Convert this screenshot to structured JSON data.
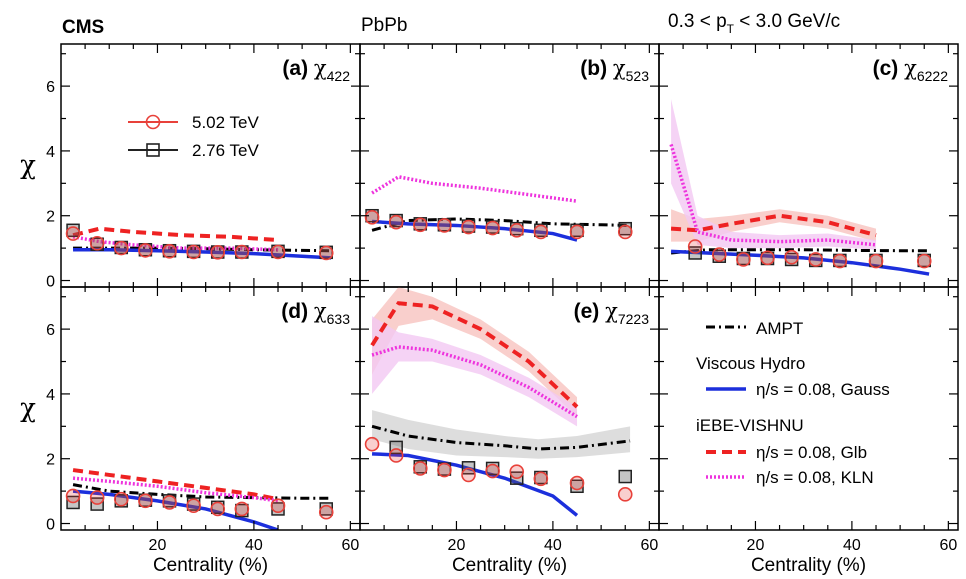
{
  "header": {
    "cms": "CMS",
    "system": "PbPb",
    "pt_prefix": "0.3 < p",
    "pt_sub": "T",
    "pt_suffix": " < 3.0 GeV/c"
  },
  "chart_data": {
    "type": "line",
    "xlabel": "Centrality (%)",
    "ylabel": "χ",
    "xlim": [
      0,
      62
    ],
    "ylim": [
      -0.2,
      7.3
    ],
    "xticks": [
      20,
      40,
      60
    ],
    "yticks": [
      0,
      2,
      4,
      6
    ],
    "colors": {
      "data_502": "#e8413a",
      "data_276": "#222222",
      "ampt": "#000000",
      "gauss": "#1c2fdc",
      "glb": "#ee2222",
      "kln": "#ee33dd",
      "band_glb": "#f7c3bf",
      "band_kln": "#f3c8f3",
      "band_ampt": "#d2d2d2"
    },
    "legend_data": {
      "s502": "5.02 TeV",
      "s276": "2.76 TeV"
    },
    "legend_models": {
      "ampt": "AMPT",
      "hydro_title": "Viscous Hydro",
      "gauss": "η/s = 0.08, Gauss",
      "vishnu_title": "iEBE-VISHNU",
      "glb": "η/s = 0.08, Glb",
      "kln": "η/s = 0.08, KLN"
    },
    "panels": [
      {
        "tag": "(a)",
        "sym": "χ",
        "sub": "422",
        "data_502": [
          [
            2.5,
            1.45
          ],
          [
            7.5,
            1.15
          ],
          [
            12.5,
            1.0
          ],
          [
            17.5,
            0.93
          ],
          [
            22.5,
            0.9
          ],
          [
            27.5,
            0.88
          ],
          [
            32.5,
            0.87
          ],
          [
            37.5,
            0.88
          ],
          [
            45,
            0.88
          ],
          [
            55,
            0.85
          ]
        ],
        "data_276": [
          [
            2.5,
            1.55
          ],
          [
            7.5,
            1.12
          ],
          [
            12.5,
            1.02
          ],
          [
            17.5,
            0.95
          ],
          [
            22.5,
            0.92
          ],
          [
            27.5,
            0.9
          ],
          [
            32.5,
            0.88
          ],
          [
            37.5,
            0.88
          ],
          [
            45,
            0.9
          ],
          [
            55,
            0.87
          ]
        ],
        "gauss": [
          [
            2.5,
            0.95
          ],
          [
            10,
            0.95
          ],
          [
            20,
            0.92
          ],
          [
            30,
            0.88
          ],
          [
            40,
            0.83
          ],
          [
            50,
            0.75
          ],
          [
            56,
            0.7
          ]
        ],
        "ampt": [
          [
            2.5,
            1.0
          ],
          [
            10,
            1.0
          ],
          [
            20,
            1.0
          ],
          [
            30,
            0.98
          ],
          [
            40,
            0.95
          ],
          [
            50,
            0.93
          ],
          [
            56,
            0.92
          ]
        ],
        "glb": [
          [
            2.5,
            1.4
          ],
          [
            8,
            1.6
          ],
          [
            15,
            1.5
          ],
          [
            25,
            1.4
          ],
          [
            35,
            1.35
          ],
          [
            45,
            1.25
          ]
        ],
        "kln": [
          [
            2.5,
            1.35
          ],
          [
            8,
            1.2
          ],
          [
            15,
            1.1
          ],
          [
            25,
            1.0
          ],
          [
            35,
            1.0
          ],
          [
            45,
            0.95
          ]
        ],
        "band_glb": [],
        "band_kln": [],
        "band_ampt": []
      },
      {
        "tag": "(b)",
        "sym": "χ",
        "sub": "523",
        "data_502": [
          [
            2.5,
            1.95
          ],
          [
            7.5,
            1.8
          ],
          [
            12.5,
            1.72
          ],
          [
            17.5,
            1.7
          ],
          [
            22.5,
            1.65
          ],
          [
            27.5,
            1.62
          ],
          [
            32.5,
            1.55
          ],
          [
            37.5,
            1.5
          ],
          [
            45,
            1.5
          ],
          [
            55,
            1.5
          ]
        ],
        "data_276": [
          [
            2.5,
            2.0
          ],
          [
            7.5,
            1.85
          ],
          [
            12.5,
            1.75
          ],
          [
            17.5,
            1.72
          ],
          [
            22.5,
            1.68
          ],
          [
            27.5,
            1.65
          ],
          [
            32.5,
            1.6
          ],
          [
            37.5,
            1.55
          ],
          [
            45,
            1.55
          ],
          [
            55,
            1.6
          ]
        ],
        "gauss": [
          [
            2.5,
            1.82
          ],
          [
            10,
            1.75
          ],
          [
            20,
            1.7
          ],
          [
            30,
            1.6
          ],
          [
            40,
            1.45
          ],
          [
            45,
            1.25
          ]
        ],
        "ampt": [
          [
            2.5,
            1.55
          ],
          [
            10,
            1.85
          ],
          [
            20,
            1.9
          ],
          [
            30,
            1.85
          ],
          [
            40,
            1.75
          ],
          [
            50,
            1.72
          ],
          [
            56,
            1.7
          ]
        ],
        "glb": [],
        "kln": [
          [
            2.5,
            2.7
          ],
          [
            8,
            3.2
          ],
          [
            15,
            3.0
          ],
          [
            25,
            2.85
          ],
          [
            35,
            2.65
          ],
          [
            45,
            2.45
          ]
        ],
        "band_glb": [],
        "band_kln": [],
        "band_ampt": []
      },
      {
        "tag": "(c)",
        "sym": "χ",
        "sub": "6222",
        "data_502": [
          [
            7.5,
            1.05
          ],
          [
            12.5,
            0.8
          ],
          [
            17.5,
            0.65
          ],
          [
            22.5,
            0.7
          ],
          [
            27.5,
            0.72
          ],
          [
            32.5,
            0.65
          ],
          [
            37.5,
            0.6
          ],
          [
            45,
            0.6
          ],
          [
            55,
            0.6
          ]
        ],
        "data_276": [
          [
            7.5,
            0.85
          ],
          [
            12.5,
            0.75
          ],
          [
            17.5,
            0.68
          ],
          [
            22.5,
            0.68
          ],
          [
            27.5,
            0.65
          ],
          [
            32.5,
            0.62
          ],
          [
            37.5,
            0.62
          ],
          [
            45,
            0.62
          ],
          [
            55,
            0.62
          ]
        ],
        "gauss": [
          [
            2.5,
            0.9
          ],
          [
            10,
            0.85
          ],
          [
            20,
            0.78
          ],
          [
            30,
            0.7
          ],
          [
            40,
            0.55
          ],
          [
            50,
            0.35
          ],
          [
            56,
            0.2
          ]
        ],
        "ampt": [
          [
            2.5,
            0.85
          ],
          [
            10,
            0.95
          ],
          [
            20,
            0.95
          ],
          [
            30,
            0.95
          ],
          [
            40,
            0.93
          ],
          [
            50,
            0.92
          ],
          [
            56,
            0.92
          ]
        ],
        "glb": [
          [
            2.5,
            1.6
          ],
          [
            8,
            1.55
          ],
          [
            15,
            1.75
          ],
          [
            25,
            2.0
          ],
          [
            35,
            1.8
          ],
          [
            45,
            1.4
          ]
        ],
        "kln": [
          [
            2.5,
            4.2
          ],
          [
            8,
            1.5
          ],
          [
            15,
            1.25
          ],
          [
            25,
            1.2
          ],
          [
            35,
            1.25
          ],
          [
            45,
            1.1
          ]
        ],
        "band_glb": [
          [
            2.5,
            1.2,
            2.2
          ],
          [
            8,
            1.2,
            1.9
          ],
          [
            15,
            1.5,
            2.0
          ],
          [
            25,
            1.8,
            2.2
          ],
          [
            35,
            1.6,
            2.0
          ],
          [
            45,
            1.2,
            1.6
          ]
        ],
        "band_kln": [
          [
            2.5,
            3.0,
            5.6
          ],
          [
            8,
            1.1,
            2.0
          ],
          [
            15,
            1.0,
            1.5
          ],
          [
            25,
            1.0,
            1.4
          ],
          [
            35,
            1.05,
            1.45
          ],
          [
            45,
            0.95,
            1.25
          ]
        ],
        "band_ampt": []
      },
      {
        "tag": "(d)",
        "sym": "χ",
        "sub": "633",
        "data_502": [
          [
            2.5,
            0.85
          ],
          [
            7.5,
            0.8
          ],
          [
            12.5,
            0.75
          ],
          [
            17.5,
            0.7
          ],
          [
            22.5,
            0.65
          ],
          [
            27.5,
            0.55
          ],
          [
            32.5,
            0.45
          ],
          [
            37.5,
            0.45
          ],
          [
            45,
            0.55
          ],
          [
            55,
            0.35
          ]
        ],
        "data_276": [
          [
            2.5,
            0.65
          ],
          [
            7.5,
            0.6
          ],
          [
            12.5,
            0.7
          ],
          [
            17.5,
            0.72
          ],
          [
            22.5,
            0.7
          ],
          [
            27.5,
            0.6
          ],
          [
            32.5,
            0.5
          ],
          [
            37.5,
            0.4
          ],
          [
            45,
            0.45
          ],
          [
            55,
            0.45
          ]
        ],
        "gauss": [
          [
            2.5,
            1.0
          ],
          [
            10,
            0.9
          ],
          [
            20,
            0.7
          ],
          [
            30,
            0.45
          ],
          [
            40,
            0.05
          ],
          [
            45,
            -0.2
          ]
        ],
        "ampt": [
          [
            2.5,
            1.2
          ],
          [
            10,
            1.0
          ],
          [
            20,
            0.9
          ],
          [
            30,
            0.82
          ],
          [
            40,
            0.8
          ],
          [
            50,
            0.78
          ],
          [
            56,
            0.78
          ]
        ],
        "glb": [
          [
            2.5,
            1.65
          ],
          [
            10,
            1.5
          ],
          [
            20,
            1.3
          ],
          [
            30,
            1.1
          ],
          [
            40,
            0.9
          ],
          [
            45,
            0.75
          ]
        ],
        "kln": [
          [
            2.5,
            1.4
          ],
          [
            10,
            1.3
          ],
          [
            20,
            1.15
          ],
          [
            30,
            0.95
          ],
          [
            40,
            0.8
          ],
          [
            45,
            0.7
          ]
        ],
        "band_glb": [],
        "band_kln": [],
        "band_ampt": []
      },
      {
        "tag": "(e)",
        "sym": "χ",
        "sub": "7223",
        "data_502": [
          [
            2.5,
            2.45
          ],
          [
            7.5,
            2.1
          ],
          [
            12.5,
            1.7
          ],
          [
            17.5,
            1.65
          ],
          [
            22.5,
            1.5
          ],
          [
            27.5,
            1.62
          ],
          [
            32.5,
            1.6
          ],
          [
            37.5,
            1.38
          ],
          [
            45,
            1.25
          ],
          [
            55,
            0.9
          ]
        ],
        "data_276": [
          [
            7.5,
            2.35
          ],
          [
            12.5,
            1.75
          ],
          [
            17.5,
            1.68
          ],
          [
            22.5,
            1.72
          ],
          [
            27.5,
            1.7
          ],
          [
            32.5,
            1.4
          ],
          [
            37.5,
            1.42
          ],
          [
            45,
            1.15
          ],
          [
            55,
            1.45
          ]
        ],
        "gauss": [
          [
            2.5,
            2.15
          ],
          [
            10,
            2.1
          ],
          [
            20,
            1.8
          ],
          [
            30,
            1.4
          ],
          [
            40,
            0.85
          ],
          [
            45,
            0.25
          ]
        ],
        "ampt": [
          [
            2.5,
            3.0
          ],
          [
            10,
            2.7
          ],
          [
            20,
            2.5
          ],
          [
            30,
            2.4
          ],
          [
            37,
            2.3
          ],
          [
            45,
            2.35
          ],
          [
            56,
            2.55
          ]
        ],
        "glb": [
          [
            2.5,
            5.5
          ],
          [
            8,
            6.8
          ],
          [
            15,
            6.7
          ],
          [
            25,
            6.0
          ],
          [
            35,
            5.0
          ],
          [
            45,
            3.6
          ]
        ],
        "kln": [
          [
            2.5,
            5.2
          ],
          [
            8,
            5.45
          ],
          [
            15,
            5.35
          ],
          [
            25,
            4.9
          ],
          [
            35,
            4.2
          ],
          [
            45,
            3.3
          ]
        ],
        "band_glb": [
          [
            2.5,
            4.6,
            6.3
          ],
          [
            8,
            6.1,
            7.3
          ],
          [
            15,
            6.3,
            7.0
          ],
          [
            25,
            5.7,
            6.3
          ],
          [
            35,
            4.7,
            5.3
          ],
          [
            45,
            3.3,
            3.9
          ]
        ],
        "band_kln": [
          [
            2.5,
            4.0,
            6.4
          ],
          [
            8,
            5.0,
            5.9
          ],
          [
            15,
            5.0,
            5.7
          ],
          [
            25,
            4.6,
            5.2
          ],
          [
            35,
            3.9,
            4.5
          ],
          [
            45,
            3.0,
            3.6
          ]
        ],
        "band_ampt": [
          [
            2.5,
            2.6,
            3.5
          ],
          [
            10,
            2.3,
            3.2
          ],
          [
            20,
            2.1,
            2.9
          ],
          [
            30,
            2.05,
            2.7
          ],
          [
            37,
            2.0,
            2.6
          ],
          [
            45,
            2.05,
            2.7
          ],
          [
            56,
            2.2,
            3.0
          ]
        ]
      }
    ]
  }
}
